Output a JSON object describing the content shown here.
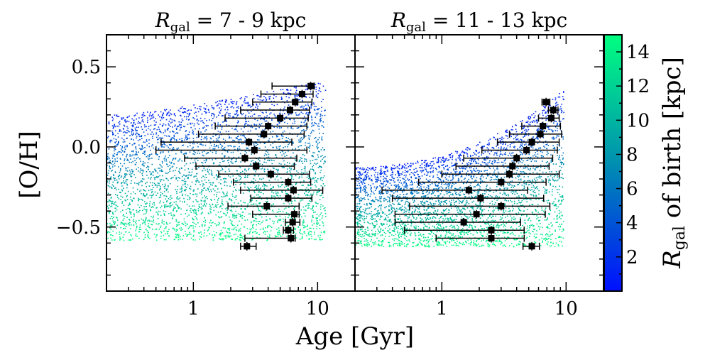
{
  "chart_data": {
    "type": "scatter",
    "xlabel": "Age [Gyr]",
    "ylabel": "[O/H]",
    "x_scale": "log",
    "xlim": [
      0.2,
      20
    ],
    "ylim": [
      -0.9,
      0.7
    ],
    "x_ticks": [
      1,
      10
    ],
    "y_ticks": [
      0.5,
      0.0,
      -0.5
    ],
    "y_tick_labels": [
      "0.5",
      "0.0",
      "−0.5"
    ],
    "x_tick_labels": [
      "1",
      "10"
    ],
    "colorbar": {
      "label": "R",
      "label_subscript": "gal",
      "label_suffix": " of birth [kpc]",
      "range": [
        0,
        15
      ],
      "ticks": [
        2,
        4,
        6,
        8,
        10,
        12,
        14
      ],
      "colors": [
        "#0010ff",
        "#008fb0",
        "#00ff80"
      ]
    },
    "panels": [
      {
        "title_var": "R",
        "title_sub": "gal",
        "title_rest": " = 7 - 9 kpc",
        "points": [
          {
            "x": 8.8,
            "y": 0.38,
            "xerr": [
              4.3,
              9.4
            ]
          },
          {
            "x": 7.5,
            "y": 0.33,
            "xerr": [
              3.5,
              9.2
            ]
          },
          {
            "x": 6.6,
            "y": 0.28,
            "xerr": [
              3.0,
              9.0
            ]
          },
          {
            "x": 6.0,
            "y": 0.23,
            "xerr": [
              2.4,
              8.6
            ]
          },
          {
            "x": 5.0,
            "y": 0.18,
            "xerr": [
              1.8,
              8.4
            ]
          },
          {
            "x": 4.0,
            "y": 0.13,
            "xerr": [
              1.5,
              8.2
            ]
          },
          {
            "x": 3.7,
            "y": 0.08,
            "xerr": [
              1.1,
              7.8
            ]
          },
          {
            "x": 2.8,
            "y": 0.03,
            "xerr": [
              0.55,
              6.2
            ]
          },
          {
            "x": 3.1,
            "y": -0.02,
            "xerr": [
              0.5,
              8.2
            ]
          },
          {
            "x": 2.6,
            "y": -0.07,
            "xerr": [
              0.85,
              6.8
            ]
          },
          {
            "x": 3.2,
            "y": -0.12,
            "xerr": [
              1.05,
              6.5
            ]
          },
          {
            "x": 4.2,
            "y": -0.17,
            "xerr": [
              1.6,
              8.6
            ]
          },
          {
            "x": 5.8,
            "y": -0.22,
            "xerr": [
              2.1,
              8.8
            ]
          },
          {
            "x": 6.4,
            "y": -0.27,
            "xerr": [
              2.4,
              11.0
            ]
          },
          {
            "x": 5.8,
            "y": -0.32,
            "xerr": [
              2.9,
              9.0
            ]
          },
          {
            "x": 3.9,
            "y": -0.37,
            "xerr": [
              1.9,
              7.1
            ]
          },
          {
            "x": 6.5,
            "y": -0.42,
            "xerr": [
              3.0,
              7.1
            ]
          },
          {
            "x": 6.3,
            "y": -0.47,
            "xerr": [
              5.5,
              7.2
            ]
          },
          {
            "x": 5.8,
            "y": -0.52,
            "xerr": [
              5.3,
              6.4
            ]
          },
          {
            "x": 6.1,
            "y": -0.57,
            "xerr": [
              2.6,
              6.6
            ]
          },
          {
            "x": 2.7,
            "y": -0.62,
            "xerr": [
              2.4,
              3.2
            ]
          }
        ]
      },
      {
        "title_var": "R",
        "title_sub": "gal",
        "title_rest": " = 11 - 13 kpc",
        "points": [
          {
            "x": 6.9,
            "y": 0.28,
            "xerr": [
              6.4,
              7.4
            ]
          },
          {
            "x": 7.9,
            "y": 0.23,
            "xerr": [
              7.2,
              8.6
            ]
          },
          {
            "x": 7.6,
            "y": 0.18,
            "xerr": [
              6.0,
              8.8
            ]
          },
          {
            "x": 6.5,
            "y": 0.13,
            "xerr": [
              4.4,
              9.0
            ]
          },
          {
            "x": 6.2,
            "y": 0.08,
            "xerr": [
              3.5,
              9.2
            ]
          },
          {
            "x": 5.3,
            "y": 0.03,
            "xerr": [
              2.8,
              8.8
            ]
          },
          {
            "x": 4.8,
            "y": -0.02,
            "xerr": [
              2.1,
              8.5
            ]
          },
          {
            "x": 4.0,
            "y": -0.07,
            "xerr": [
              1.5,
              7.8
            ]
          },
          {
            "x": 3.7,
            "y": -0.12,
            "xerr": [
              1.3,
              7.3
            ]
          },
          {
            "x": 3.5,
            "y": -0.17,
            "xerr": [
              1.0,
              8.8
            ]
          },
          {
            "x": 3.0,
            "y": -0.22,
            "xerr": [
              0.65,
              6.9
            ]
          },
          {
            "x": 1.65,
            "y": -0.27,
            "xerr": [
              0.33,
              4.9
            ]
          },
          {
            "x": 2.05,
            "y": -0.32,
            "xerr": [
              0.4,
              6.6
            ]
          },
          {
            "x": 3.0,
            "y": -0.37,
            "xerr": [
              0.55,
              7.4
            ]
          },
          {
            "x": 1.9,
            "y": -0.42,
            "xerr": [
              0.42,
              6.8
            ]
          },
          {
            "x": 1.5,
            "y": -0.47,
            "xerr": [
              0.42,
              4.3
            ]
          },
          {
            "x": 2.5,
            "y": -0.52,
            "xerr": [
              0.5,
              4.6
            ]
          },
          {
            "x": 2.5,
            "y": -0.57,
            "xerr": [
              0.9,
              4.6
            ]
          },
          {
            "x": 5.3,
            "y": -0.62,
            "xerr": [
              4.5,
              6.1
            ]
          }
        ]
      }
    ]
  }
}
